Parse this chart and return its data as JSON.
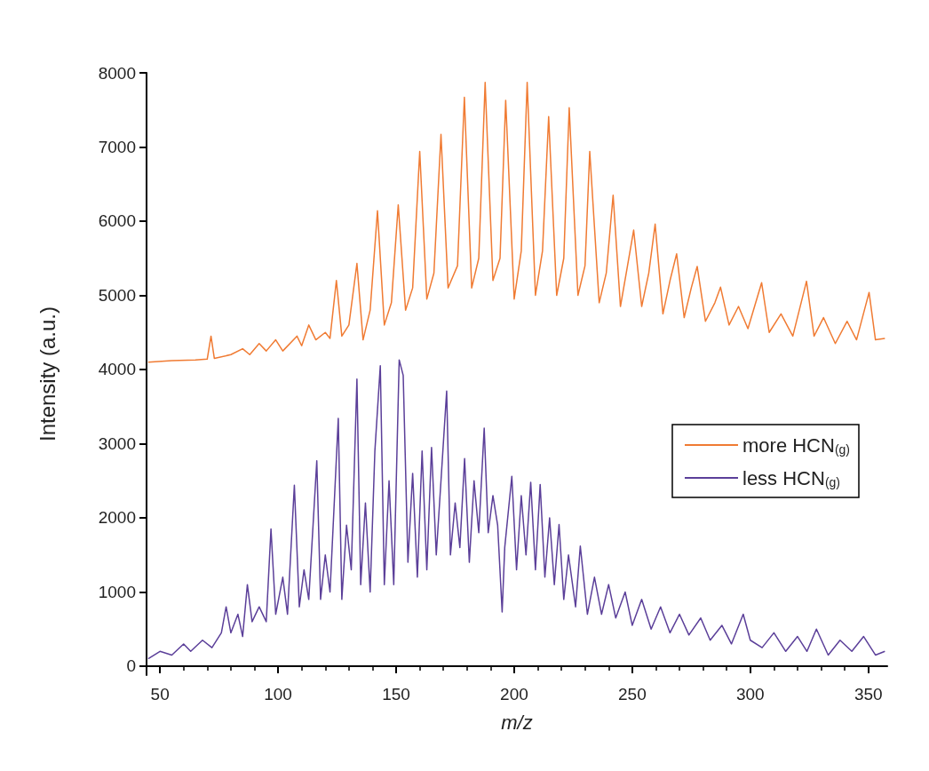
{
  "chart_data": {
    "type": "line",
    "xlabel": "m/z",
    "ylabel": "Intensity (a.u.)",
    "xlim": [
      44.3,
      358
    ],
    "xticks": [
      50,
      100,
      150,
      200,
      250,
      300,
      350
    ],
    "ylim": [
      -120,
      8000
    ],
    "yticks": [
      0,
      1000,
      2000,
      3000,
      4000,
      5000,
      6000,
      7000,
      8000
    ],
    "grid": false,
    "legend": "right",
    "marker": "none",
    "line_style": "solid",
    "series": [
      {
        "name": "more HCN$_{(g)}$",
        "color": "#f07b33",
        "x": [
          45,
          55,
          65,
          70,
          71.6,
          73,
          80,
          85,
          88,
          92,
          95,
          99,
          102,
          108,
          110,
          113,
          116,
          120,
          122,
          124.7,
          127,
          130,
          133.4,
          136,
          139,
          142.1,
          145,
          148,
          150.9,
          154,
          157,
          160,
          163,
          166,
          169,
          172,
          176,
          178.9,
          182,
          185,
          187.7,
          191,
          194,
          196.4,
          200,
          203,
          205.5,
          209,
          212,
          214.6,
          218,
          221,
          223.3,
          227,
          230,
          232,
          236,
          239,
          241.9,
          245,
          248,
          250.6,
          254,
          257,
          259.7,
          263,
          266,
          268.8,
          272,
          275,
          277.5,
          281,
          285,
          287.4,
          291,
          295,
          299,
          304.8,
          308,
          313,
          318,
          323.8,
          327,
          331,
          336,
          341,
          345,
          350.3,
          353,
          357
        ],
        "values": [
          4100,
          4120,
          4130,
          4140,
          4450,
          4150,
          4200,
          4280,
          4200,
          4350,
          4250,
          4400,
          4250,
          4450,
          4320,
          4600,
          4400,
          4500,
          4420,
          5200,
          4450,
          4600,
          5430,
          4400,
          4800,
          6140,
          4600,
          4900,
          6220,
          4800,
          5100,
          6940,
          4950,
          5300,
          7170,
          5100,
          5400,
          7670,
          5100,
          5500,
          7870,
          5200,
          5500,
          7630,
          4950,
          5600,
          7870,
          5000,
          5600,
          7410,
          5000,
          5500,
          7530,
          5000,
          5400,
          6940,
          4900,
          5300,
          6350,
          4850,
          5400,
          5880,
          4850,
          5300,
          5960,
          4750,
          5200,
          5560,
          4700,
          5100,
          5390,
          4650,
          4900,
          5110,
          4600,
          4850,
          4550,
          5170,
          4500,
          4750,
          4450,
          5190,
          4450,
          4700,
          4350,
          4650,
          4400,
          5040,
          4400,
          4420
        ]
      },
      {
        "name": "less HCN$_{(g)}$",
        "color": "#5b3f99",
        "x": [
          45,
          50,
          55,
          60,
          63,
          68,
          72,
          76,
          78,
          80,
          83,
          85,
          87,
          89,
          92,
          95,
          97,
          99,
          102,
          104,
          106.9,
          109,
          111,
          113,
          116.4,
          118,
          120,
          122,
          125.5,
          127,
          129,
          131,
          133.4,
          135,
          137,
          139,
          141,
          143.3,
          145,
          147,
          149,
          151.3,
          153,
          155,
          157,
          159,
          161,
          163,
          165,
          167,
          169,
          171.4,
          173,
          175,
          177,
          179,
          181,
          183,
          185,
          187.3,
          189,
          191,
          193,
          194.9,
          196,
          199,
          201,
          203,
          205,
          207,
          209,
          211,
          213,
          215,
          217,
          219,
          221,
          223,
          226,
          228,
          231,
          234,
          237,
          240,
          243,
          247,
          250,
          254,
          258,
          262,
          266,
          270,
          274,
          279,
          283,
          288,
          292,
          297,
          300,
          305,
          310,
          315,
          320,
          324,
          328,
          333,
          338,
          343,
          348,
          353,
          357
        ],
        "values": [
          100,
          200,
          150,
          300,
          200,
          350,
          250,
          450,
          800,
          450,
          700,
          400,
          1100,
          600,
          800,
          600,
          1850,
          700,
          1200,
          700,
          2440,
          800,
          1300,
          900,
          2770,
          900,
          1500,
          1000,
          3340,
          900,
          1900,
          1300,
          3870,
          1100,
          2200,
          1000,
          2900,
          4050,
          1100,
          2500,
          1100,
          4130,
          3920,
          1400,
          2600,
          1200,
          2900,
          1300,
          2950,
          1500,
          2500,
          3710,
          1500,
          2200,
          1600,
          2800,
          1400,
          2500,
          1800,
          3210,
          1800,
          2300,
          1900,
          730,
          1600,
          2560,
          1300,
          2300,
          1500,
          2480,
          1300,
          2450,
          1200,
          2000,
          1100,
          1910,
          900,
          1500,
          800,
          1620,
          700,
          1200,
          700,
          1100,
          650,
          1000,
          550,
          900,
          500,
          800,
          450,
          700,
          420,
          650,
          350,
          550,
          300,
          700,
          350,
          250,
          450,
          200,
          400,
          200,
          500,
          150,
          350,
          200,
          400,
          150,
          200
        ]
      }
    ]
  }
}
